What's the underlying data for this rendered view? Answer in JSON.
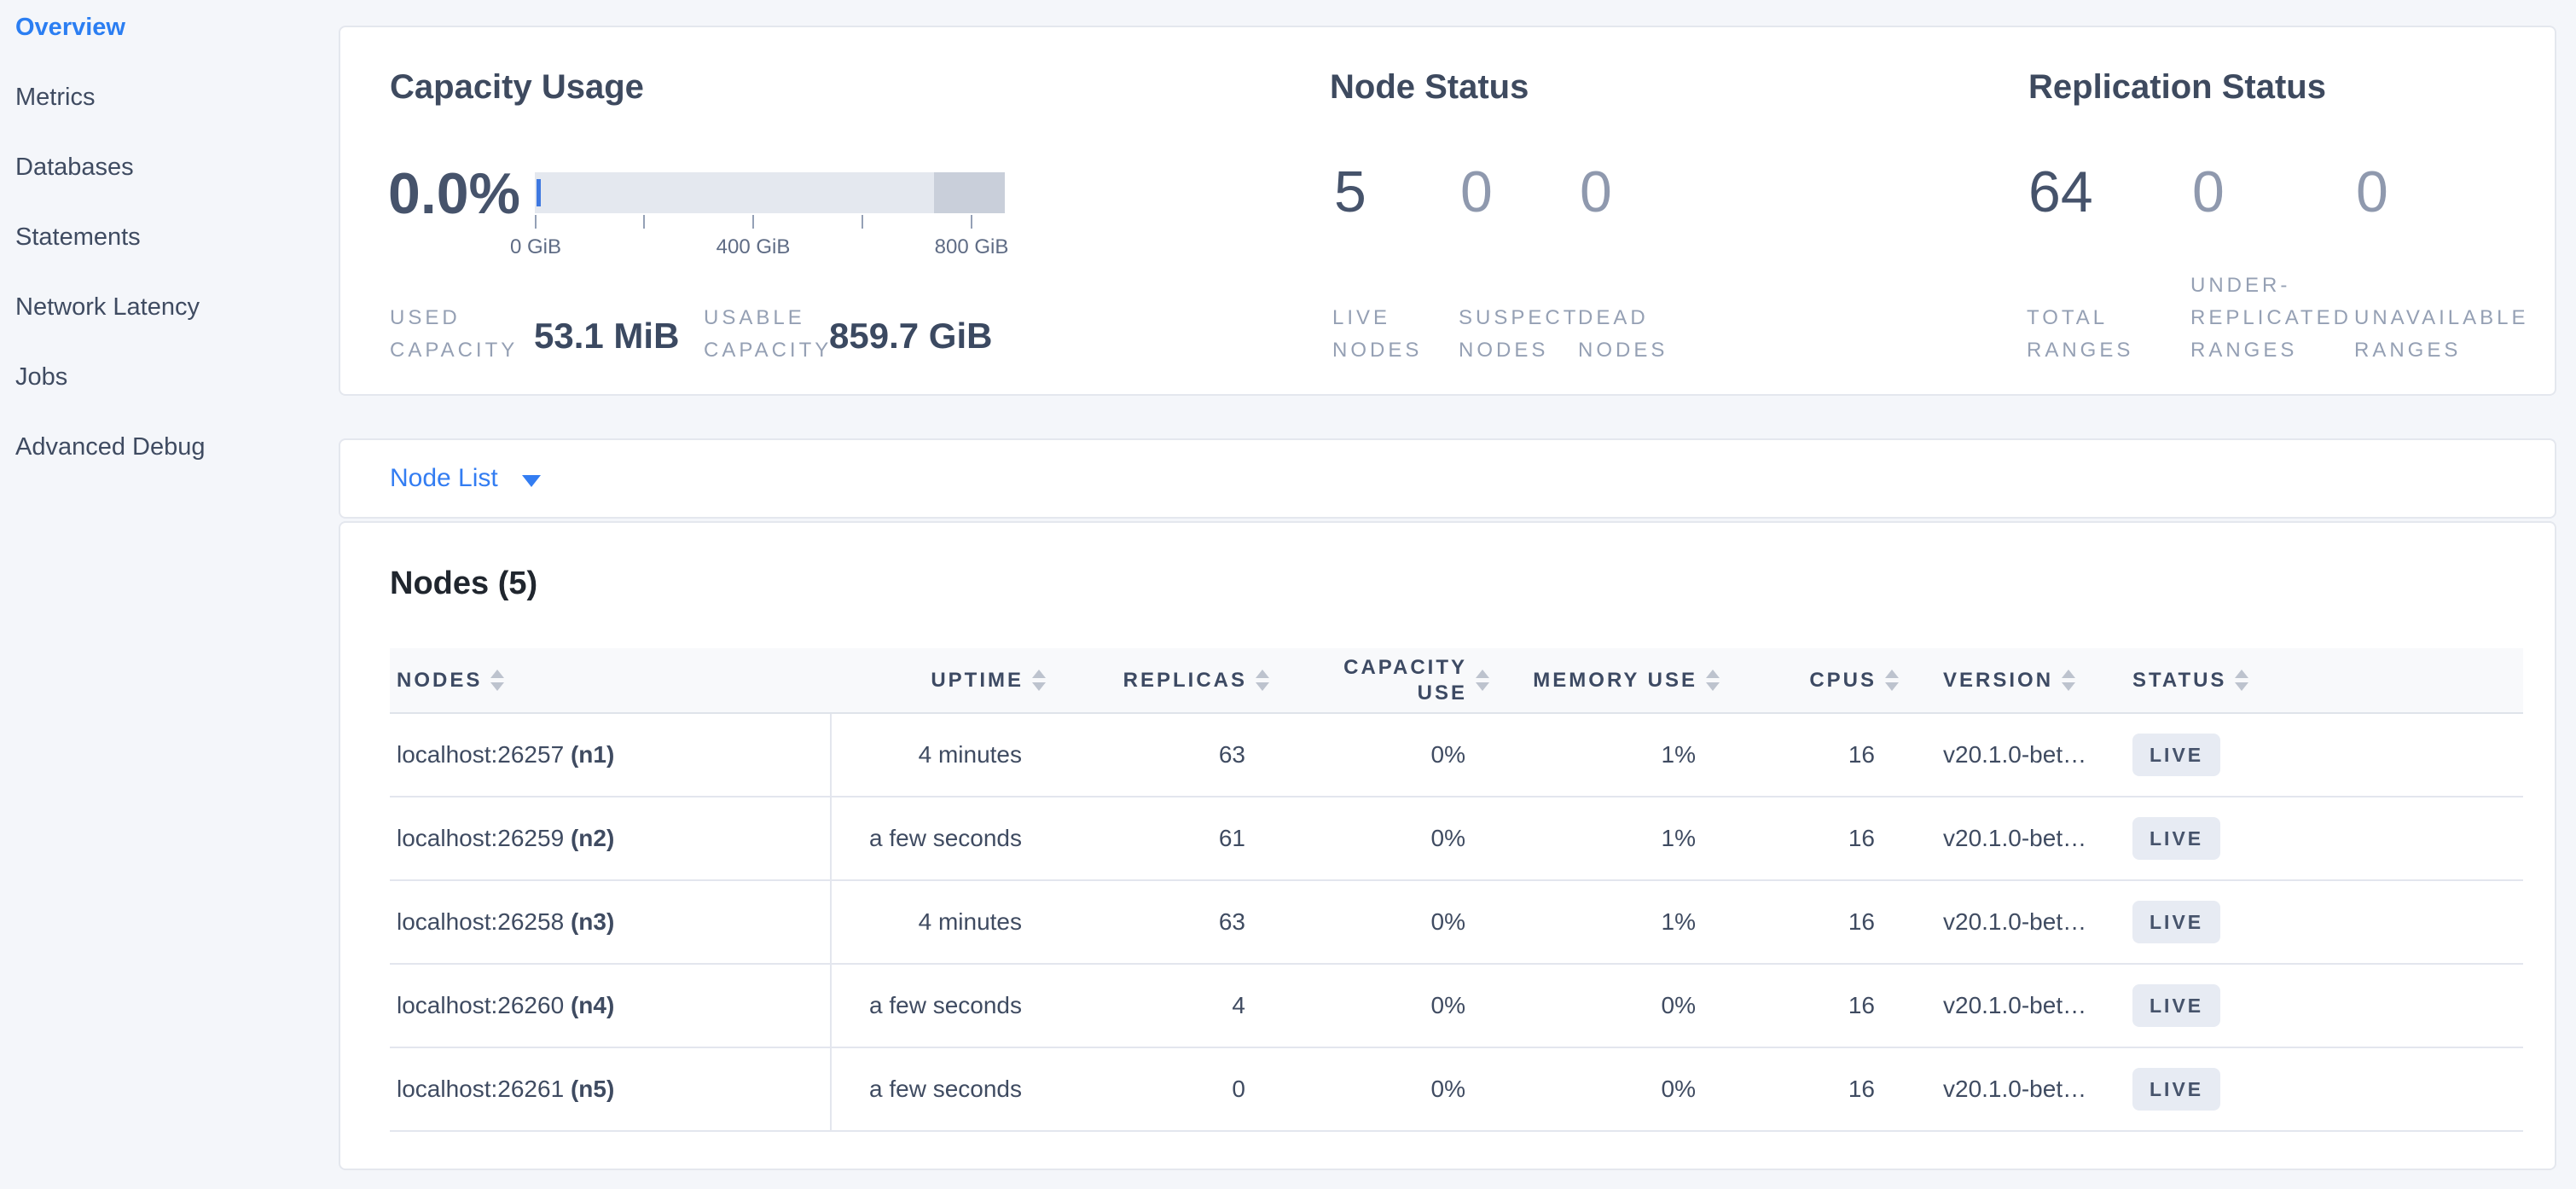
{
  "sidebar": {
    "items": [
      {
        "label": "Overview",
        "active": true
      },
      {
        "label": "Metrics",
        "active": false
      },
      {
        "label": "Databases",
        "active": false
      },
      {
        "label": "Statements",
        "active": false
      },
      {
        "label": "Network Latency",
        "active": false
      },
      {
        "label": "Jobs",
        "active": false
      },
      {
        "label": "Advanced Debug",
        "active": false
      }
    ]
  },
  "colors": {
    "accent_blue": "#2b7ef2",
    "bar_track": "#e4e8ef",
    "bar_other": "#c9cfda",
    "bar_used": "#3e78e0",
    "badge_bg": "#e7ebf3"
  },
  "panels": {
    "capacity": {
      "title": "Capacity Usage",
      "percent": "0.0%",
      "axis_labels": [
        "0 GiB",
        "400 GiB",
        "800 GiB"
      ],
      "used_label": "USED\nCAPACITY",
      "used_value": "53.1 MiB",
      "usable_label": "USABLE\nCAPACITY",
      "usable_value": "859.7 GiB"
    },
    "node_status": {
      "title": "Node Status",
      "metrics": [
        {
          "value": "5",
          "label": "LIVE\nNODES"
        },
        {
          "value": "0",
          "label": "SUSPECT\nNODES"
        },
        {
          "value": "0",
          "label": "DEAD\nNODES"
        }
      ]
    },
    "replication": {
      "title": "Replication Status",
      "metrics": [
        {
          "value": "64",
          "label": "TOTAL\nRANGES"
        },
        {
          "value": "0",
          "label": "UNDER-\nREPLICATED\nRANGES"
        },
        {
          "value": "0",
          "label": "UNAVAILABLE\nRANGES"
        }
      ]
    }
  },
  "node_list": {
    "label": "Node List"
  },
  "nodes_section": {
    "title": "Nodes (5)",
    "columns": [
      {
        "key": "nodes",
        "label": "NODES",
        "align": "left"
      },
      {
        "key": "uptime",
        "label": "UPTIME",
        "align": "right"
      },
      {
        "key": "replicas",
        "label": "REPLICAS",
        "align": "right"
      },
      {
        "key": "capacity",
        "label": "CAPACITY\nUSE",
        "align": "right"
      },
      {
        "key": "memory",
        "label": "MEMORY USE",
        "align": "right"
      },
      {
        "key": "cpus",
        "label": "CPUS",
        "align": "right"
      },
      {
        "key": "version",
        "label": "VERSION",
        "align": "left"
      },
      {
        "key": "status",
        "label": "STATUS",
        "align": "left"
      }
    ],
    "rows": [
      {
        "address": "localhost:26257",
        "id": "(n1)",
        "uptime": "4 minutes",
        "replicas": "63",
        "capacity": "0%",
        "memory": "1%",
        "cpus": "16",
        "version": "v20.1.0-bet…",
        "status": "LIVE"
      },
      {
        "address": "localhost:26259",
        "id": "(n2)",
        "uptime": "a few seconds",
        "replicas": "61",
        "capacity": "0%",
        "memory": "1%",
        "cpus": "16",
        "version": "v20.1.0-bet…",
        "status": "LIVE"
      },
      {
        "address": "localhost:26258",
        "id": "(n3)",
        "uptime": "4 minutes",
        "replicas": "63",
        "capacity": "0%",
        "memory": "1%",
        "cpus": "16",
        "version": "v20.1.0-bet…",
        "status": "LIVE"
      },
      {
        "address": "localhost:26260",
        "id": "(n4)",
        "uptime": "a few seconds",
        "replicas": "4",
        "capacity": "0%",
        "memory": "0%",
        "cpus": "16",
        "version": "v20.1.0-bet…",
        "status": "LIVE"
      },
      {
        "address": "localhost:26261",
        "id": "(n5)",
        "uptime": "a few seconds",
        "replicas": "0",
        "capacity": "0%",
        "memory": "0%",
        "cpus": "16",
        "version": "v20.1.0-bet…",
        "status": "LIVE"
      }
    ]
  }
}
